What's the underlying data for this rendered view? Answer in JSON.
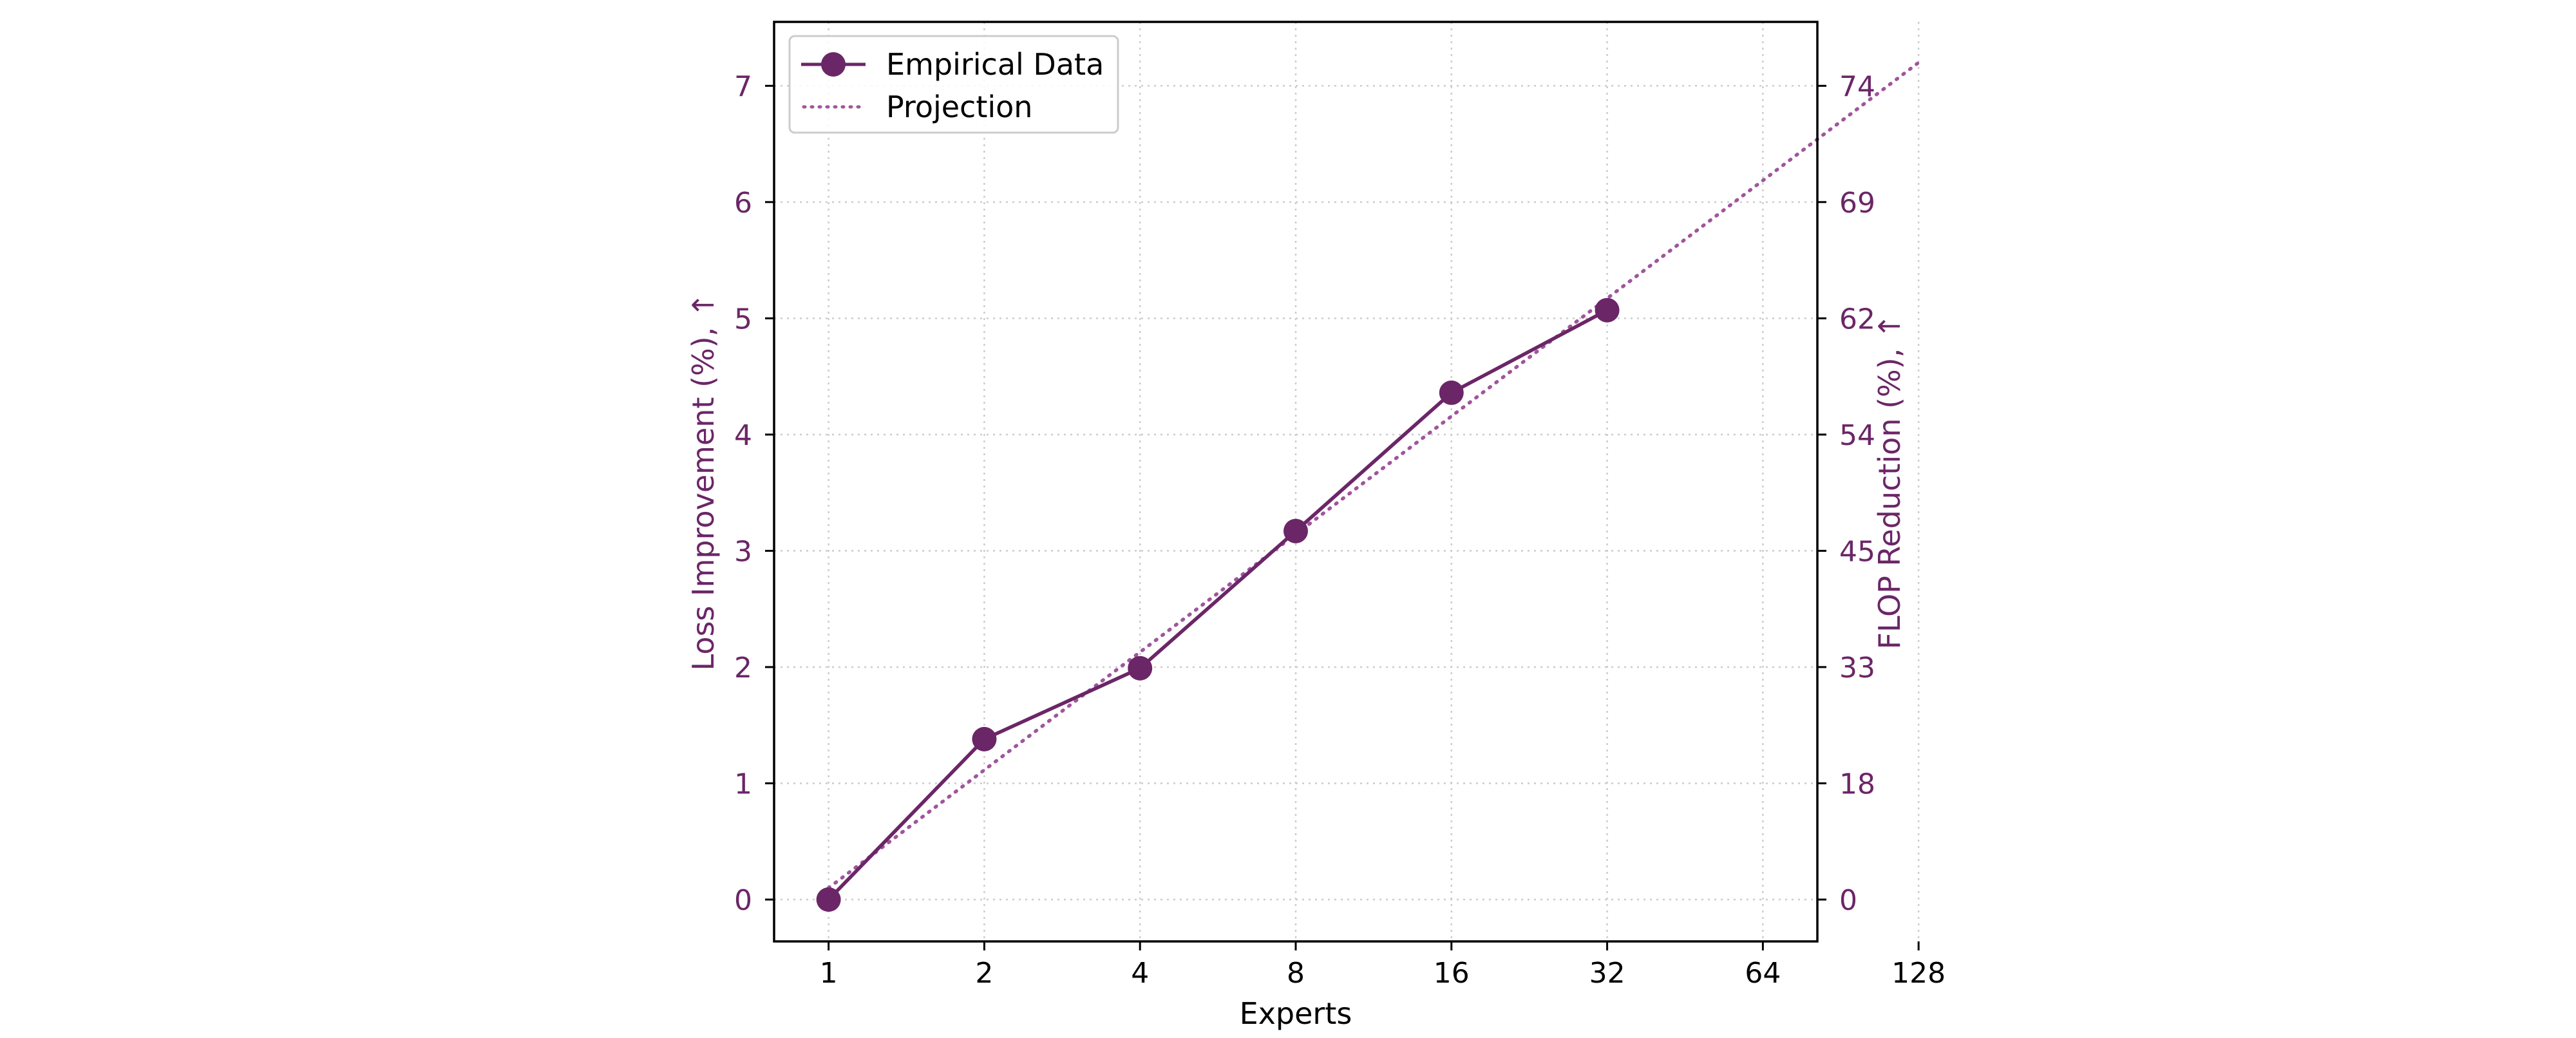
{
  "chart_data": {
    "type": "line",
    "xlabel": "Experts",
    "ylabel_left": "Loss Improvement (%), ↑",
    "ylabel_right": "FLOP Reduction (%), ↑",
    "x_scale": "log2",
    "x_ticks": [
      "1",
      "2",
      "4",
      "8",
      "16",
      "32",
      "64",
      "128"
    ],
    "y_ticks_left": [
      "0",
      "1",
      "2",
      "3",
      "4",
      "5",
      "6",
      "7"
    ],
    "y_ticks_right": [
      "0",
      "18",
      "33",
      "45",
      "54",
      "62",
      "69",
      "74"
    ],
    "ylim_left": [
      -0.36,
      7.55
    ],
    "grid": "dotted",
    "legend_position": "upper-left",
    "series": [
      {
        "name": "Empirical Data",
        "style": "solid line with circle markers",
        "x": [
          1,
          2,
          4,
          8,
          16,
          32
        ],
        "y": [
          0.0,
          1.38,
          1.99,
          3.17,
          4.36,
          5.07
        ]
      },
      {
        "name": "Projection",
        "style": "dotted line",
        "x": [
          1,
          128
        ],
        "y": [
          0.1,
          7.2
        ]
      }
    ],
    "colors": {
      "series": "#6b2667",
      "projection": "#a0559d",
      "axis_label": "#6b2667",
      "grid": "#cccccc",
      "frame": "#000000"
    }
  }
}
